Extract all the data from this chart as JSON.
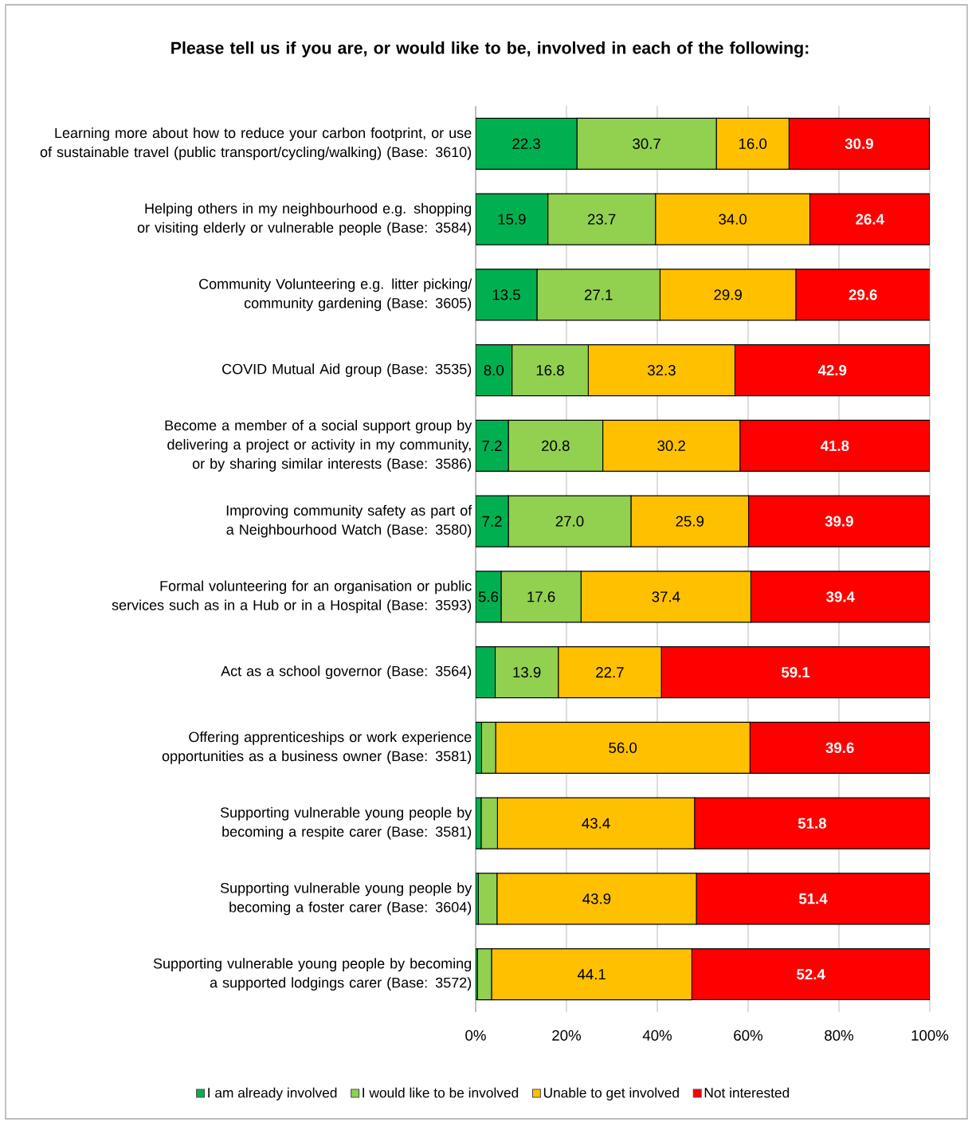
{
  "chart_data": {
    "type": "bar",
    "orientation": "horizontal",
    "stacked": true,
    "title": "Please tell us if you are, or would like to be, involved in each of the following:",
    "categories": [
      "Learning more about how to reduce your carbon footprint, or use of sustainable travel (public transport/cycling/walking) (Base: 3610)",
      "Helping others in my neighbourhood e.g. shopping or visiting elderly or vulnerable people  (Base: 3584)",
      "Community Volunteering e.g. litter picking/ community gardening  (Base: 3605)",
      "COVID Mutual Aid group (Base: 3535)",
      "Become a member of a social support group by delivering a project or activity in my community, or by sharing similar interests (Base: 3586)",
      "Improving community safety as part of a Neighbourhood Watch (Base: 3580)",
      "Formal volunteering for an organisation or public services such as in a Hub or in a Hospital  (Base: 3593)",
      "Act as a school governor  (Base: 3564)",
      "Offering apprenticeships or work experience opportunities as a business owner  (Base: 3581)",
      "Supporting vulnerable young people by becoming a respite carer  (Base: 3581)",
      "Supporting vulnerable young people by becoming a foster carer  (Base: 3604)",
      "Supporting vulnerable young people by becoming a supported lodgings carer  (Base: 3572)"
    ],
    "series": [
      {
        "name": "I am already involved",
        "color": "#00b050",
        "values": [
          22.3,
          15.9,
          13.5,
          8.0,
          7.2,
          7.2,
          5.6,
          4.3,
          1.3,
          1.2,
          0.6,
          0.4
        ],
        "value_labels": [
          "22.3",
          "15.9",
          "13.5",
          "8.0",
          "7.2",
          "7.2",
          "5.6",
          null,
          null,
          null,
          null,
          null
        ]
      },
      {
        "name": "I would like to be involved",
        "color": "#92d050",
        "values": [
          30.7,
          23.7,
          27.1,
          16.8,
          20.8,
          27.0,
          17.6,
          13.9,
          3.1,
          3.6,
          4.1,
          3.1
        ],
        "value_labels": [
          "30.7",
          "23.7",
          "27.1",
          "16.8",
          "20.8",
          "27.0",
          "17.6",
          "13.9",
          null,
          null,
          null,
          null
        ]
      },
      {
        "name": "Unable to get involved",
        "color": "#ffc000",
        "values": [
          16.0,
          34.0,
          29.9,
          32.3,
          30.2,
          25.9,
          37.4,
          22.7,
          56.0,
          43.4,
          43.9,
          44.1
        ],
        "value_labels": [
          "16.0",
          "34.0",
          "29.9",
          "32.3",
          "30.2",
          "25.9",
          "37.4",
          "22.7",
          "56.0",
          "43.4",
          "43.9",
          "44.1"
        ]
      },
      {
        "name": "Not interested",
        "color": "#ff0000",
        "values": [
          30.9,
          26.4,
          29.6,
          42.9,
          41.8,
          39.9,
          39.4,
          59.1,
          39.6,
          51.8,
          51.4,
          52.4
        ],
        "value_labels": [
          "30.9",
          "26.4",
          "29.6",
          "42.9",
          "41.8",
          "39.9",
          "39.4",
          "59.1",
          "39.6",
          "51.8",
          "51.4",
          "52.4"
        ]
      }
    ],
    "xlim": [
      0,
      100
    ],
    "xticks": [
      {
        "value": 0,
        "label": "0%"
      },
      {
        "value": 20,
        "label": "20%"
      },
      {
        "value": 40,
        "label": "40%"
      },
      {
        "value": 60,
        "label": "60%"
      },
      {
        "value": 80,
        "label": "80%"
      },
      {
        "value": 100,
        "label": "100%"
      }
    ],
    "grid": "x",
    "legend": "bottom"
  }
}
